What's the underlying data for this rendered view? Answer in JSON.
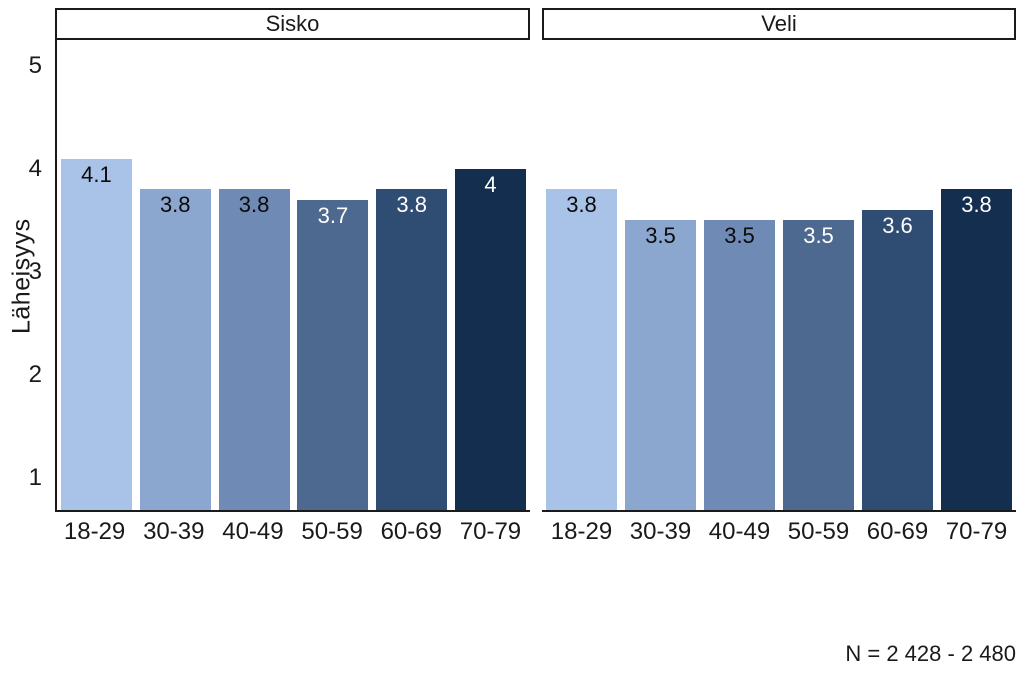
{
  "figure": {
    "y_axis_title": "Läheisyys",
    "footnote": "N = 2 428 - 2 480"
  },
  "chart_data": {
    "type": "bar",
    "title": "",
    "xlabel": "",
    "ylabel": "Läheisyys",
    "categories": [
      "18-29",
      "30-39",
      "40-49",
      "50-59",
      "60-69",
      "70-79"
    ],
    "facets": [
      {
        "label": "Sisko",
        "values": [
          4.1,
          3.8,
          3.8,
          3.7,
          3.8,
          4
        ]
      },
      {
        "label": "Veli",
        "values": [
          3.8,
          3.5,
          3.5,
          3.5,
          3.6,
          3.8
        ]
      }
    ],
    "yticks": [
      1,
      2,
      3,
      4,
      5
    ],
    "ylim": [
      0.69,
      5.25
    ],
    "grid": false,
    "legend": false,
    "bar_colors": [
      "#a9c3e8",
      "#8ba6cf",
      "#6e8ab5",
      "#4d6990",
      "#2f4c73",
      "#132e4e"
    ],
    "value_label_colors": [
      "#0b0b0b",
      "#0b0b0b",
      "#0b0b0b",
      "#ffffff",
      "#ffffff",
      "#ffffff"
    ],
    "axis_color": "#1a1a1a",
    "footnote": "N = 2 428 - 2 480"
  }
}
